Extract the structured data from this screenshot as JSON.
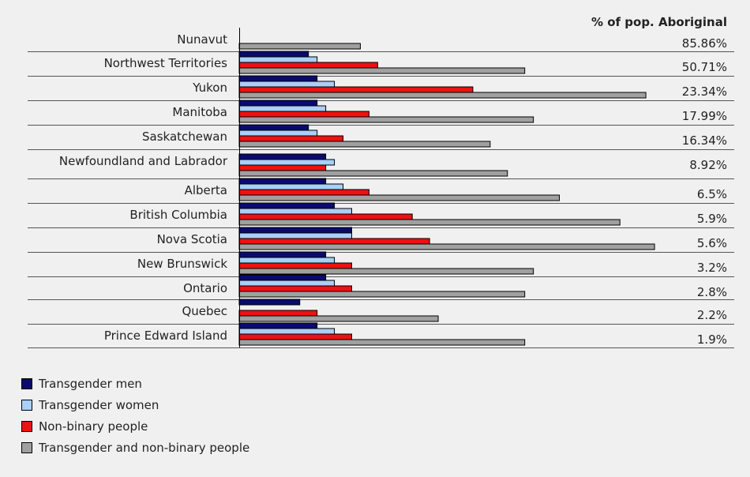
{
  "chart_data": {
    "type": "bar",
    "orientation": "horizontal",
    "value_column_header": "% of pop. Aboriginal",
    "categories": [
      "Nunavut",
      "Northwest Territories",
      "Yukon",
      "Manitoba",
      "Saskatchewan",
      "Newfoundland and Labrador",
      "Alberta",
      "British Columbia",
      "Nova Scotia",
      "New Brunswick",
      "Ontario",
      "Quebec",
      "Prince Edward Island"
    ],
    "category_values": [
      "85.86%",
      "50.71%",
      "23.34%",
      "17.99%",
      "16.34%",
      "8.92%",
      "6.5%",
      "5.9%",
      "5.6%",
      "3.2%",
      "2.8%",
      "2.2%",
      "1.9%"
    ],
    "xlim": [
      0,
      50
    ],
    "series": [
      {
        "name": "Transgender men",
        "color": "#0a0a6e",
        "values": [
          0,
          8,
          9,
          9,
          8,
          10,
          10,
          11,
          13,
          10,
          10,
          7,
          9
        ]
      },
      {
        "name": "Transgender women",
        "color": "#a8d0f8",
        "values": [
          0,
          9,
          11,
          10,
          9,
          11,
          12,
          13,
          13,
          11,
          11,
          0,
          11
        ]
      },
      {
        "name": "Non-binary people",
        "color": "#ee1111",
        "values": [
          0,
          16,
          27,
          15,
          12,
          10,
          15,
          20,
          22,
          13,
          13,
          9,
          13
        ]
      },
      {
        "name": "Transgender and non-binary people",
        "color": "#a0a0a0",
        "values": [
          14,
          33,
          47,
          34,
          29,
          31,
          37,
          44,
          48,
          34,
          33,
          23,
          33
        ]
      }
    ],
    "legend_position": "bottom-left",
    "grid": false
  }
}
